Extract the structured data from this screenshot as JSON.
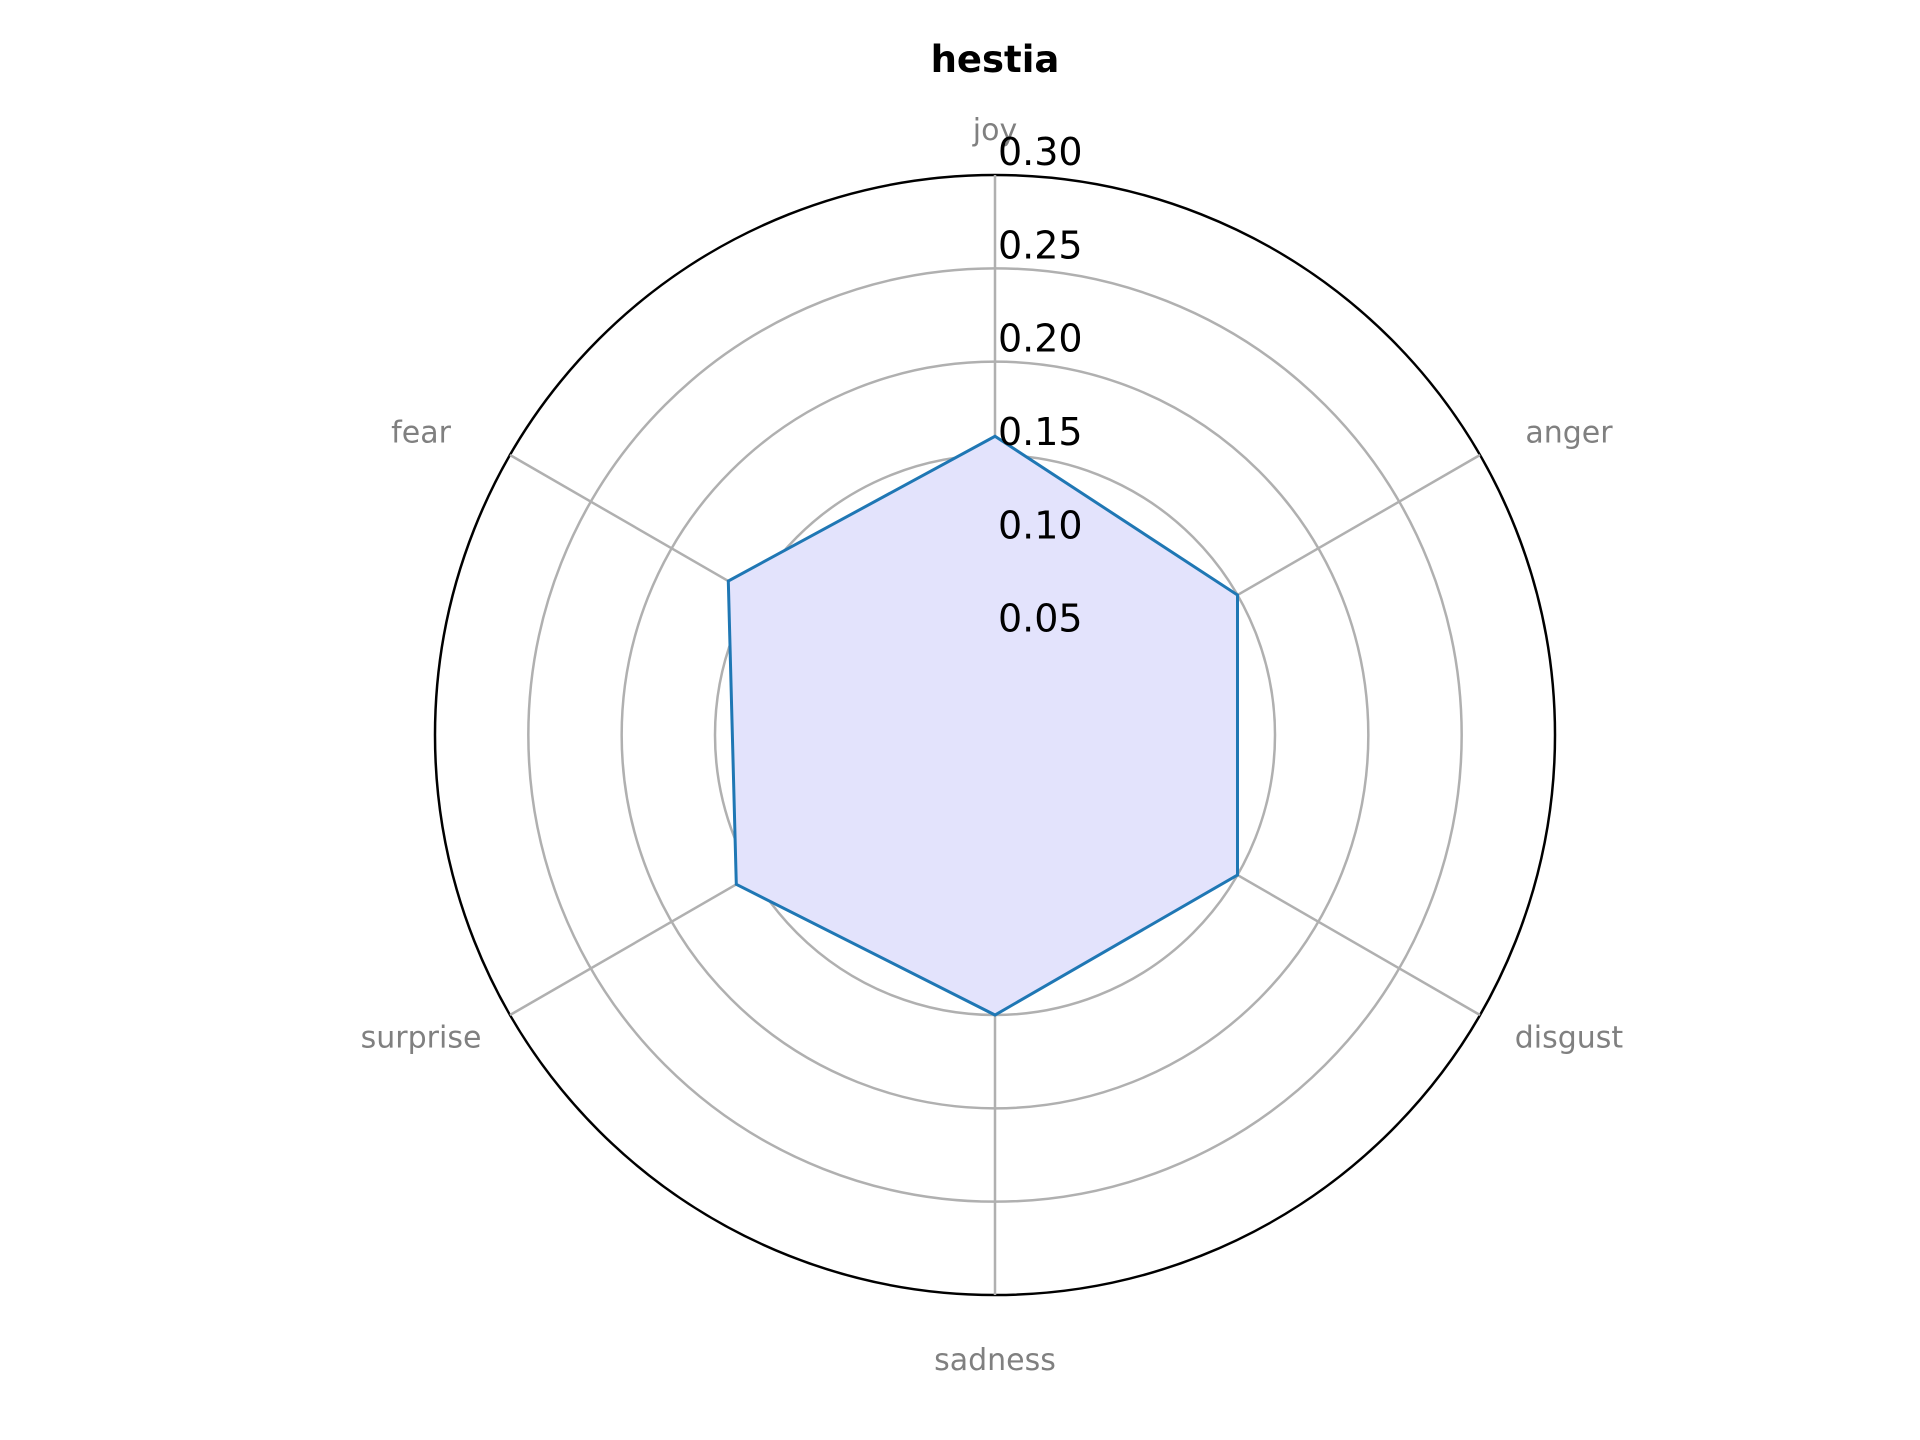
{
  "chart_data": {
    "type": "radar",
    "title": "hestia",
    "categories": [
      "joy",
      "anger",
      "disgust",
      "sadness",
      "surprise",
      "fear"
    ],
    "series": [
      {
        "values": [
          0.16,
          0.15,
          0.15,
          0.15,
          0.16,
          0.165
        ]
      }
    ],
    "rlim": [
      0,
      0.3
    ],
    "rticks": [
      0.05,
      0.1,
      0.15,
      0.2,
      0.25,
      0.3
    ],
    "rtick_labels": [
      "0.05",
      "0.10",
      "0.15",
      "0.20",
      "0.25",
      "0.30"
    ],
    "grid": true,
    "colors": {
      "line": "#1f77b4",
      "fill": "#e3e3fc",
      "grid": "#b0b0b0",
      "outer_ring": "#000000",
      "category_label": "#808080"
    }
  }
}
